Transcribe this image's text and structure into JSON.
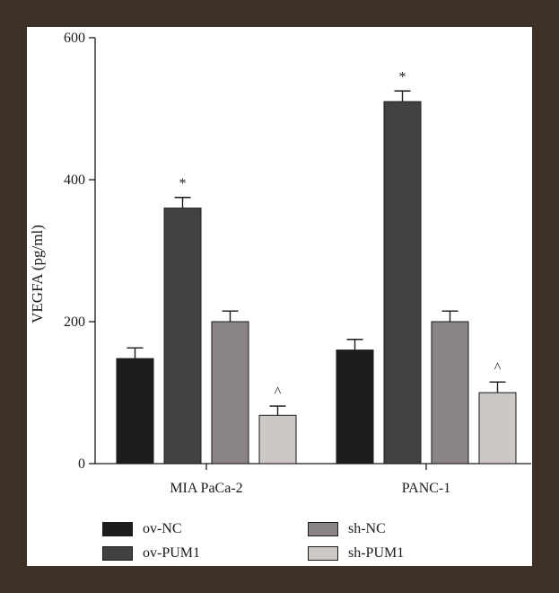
{
  "chart_data": {
    "type": "bar",
    "title": "",
    "xlabel": "",
    "ylabel": "VEGFA (pg/ml)",
    "ylim": [
      0,
      600
    ],
    "yticks": [
      "0",
      "200",
      "400",
      "600"
    ],
    "categories": [
      "MIA PaCa-2",
      "PANC-1"
    ],
    "series": [
      {
        "name": "ov-NC",
        "color": "#1d1d1b",
        "values": [
          148,
          160
        ],
        "errors": [
          15,
          15
        ],
        "marks": [
          "",
          ""
        ]
      },
      {
        "name": "ov-PUM1",
        "color": "#444241",
        "values": [
          360,
          510
        ],
        "errors": [
          15,
          15
        ],
        "marks": [
          "*",
          "*"
        ]
      },
      {
        "name": "sh-NC",
        "color": "#8a8584",
        "values": [
          200,
          200
        ],
        "errors": [
          15,
          15
        ],
        "marks": [
          "",
          ""
        ]
      },
      {
        "name": "sh-PUM1",
        "color": "#cdc7c5",
        "values": [
          68,
          100
        ],
        "errors": [
          13,
          15
        ],
        "marks": [
          "^",
          "^"
        ]
      }
    ],
    "grid": false,
    "legend_position": "bottom"
  }
}
